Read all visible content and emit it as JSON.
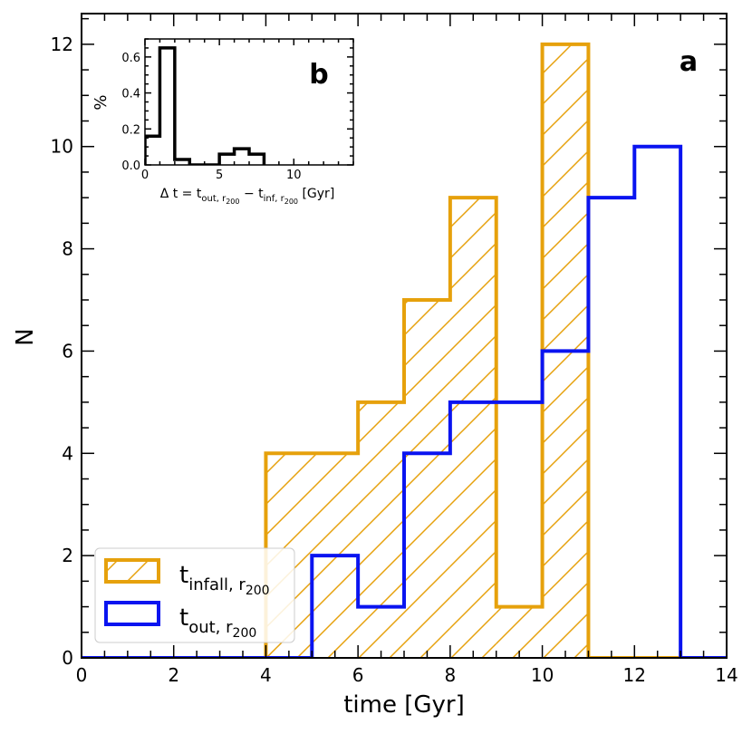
{
  "chart_data": [
    {
      "panel": "a",
      "type": "histogram",
      "xlabel": "time [Gyr]",
      "ylabel": "N",
      "xlim": [
        0,
        14
      ],
      "ylim": [
        0,
        12.6
      ],
      "xticks": [
        0,
        2,
        4,
        6,
        8,
        10,
        12,
        14
      ],
      "yticks": [
        0,
        2,
        4,
        6,
        8,
        10,
        12
      ],
      "bin_edges": [
        0,
        1,
        2,
        3,
        4,
        5,
        6,
        7,
        8,
        9,
        10,
        11,
        12,
        13,
        14
      ],
      "series": [
        {
          "name": "t_infall,r200",
          "label_main": "t",
          "label_sub": "infall, r",
          "label_subsub": "200",
          "color": "#E6A10C",
          "hatch": "/",
          "values": [
            0,
            0,
            0,
            0,
            4,
            4,
            5,
            7,
            9,
            1,
            12,
            0,
            0,
            0
          ]
        },
        {
          "name": "t_out,r200",
          "label_main": "t",
          "label_sub": "out, r",
          "label_subsub": "200",
          "color": "#0A14F0",
          "hatch": "none",
          "values": [
            0,
            0,
            0,
            0,
            0,
            2,
            1,
            4,
            5,
            5,
            6,
            9,
            10,
            0
          ]
        }
      ]
    },
    {
      "panel": "b",
      "type": "histogram",
      "ylabel": "%",
      "xlabel_parts": {
        "prefix": "Δ t = t",
        "sub1": "out, r",
        "subsub1": "200",
        "mid": " − t",
        "sub2": "inf, r",
        "subsub2": "200",
        "suffix": " [Gyr]"
      },
      "xlim": [
        0,
        14
      ],
      "ylim": [
        0,
        0.7
      ],
      "xticks": [
        0,
        5,
        10
      ],
      "yticks": [
        0.0,
        0.2,
        0.4,
        0.6
      ],
      "bin_edges": [
        0,
        1,
        2,
        3,
        4,
        5,
        6,
        7,
        8
      ],
      "values": [
        0.16,
        0.65,
        0.03,
        0.0,
        0.0,
        0.06,
        0.09,
        0.06
      ],
      "color": "#000000"
    }
  ],
  "panel_letters": {
    "main": "a",
    "inset": "b"
  }
}
